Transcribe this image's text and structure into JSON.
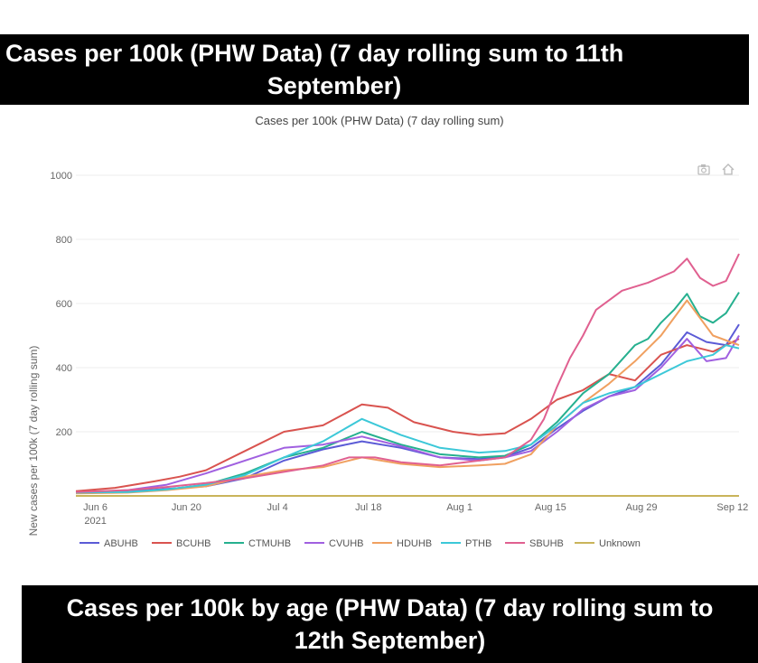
{
  "banners": {
    "top_line1": "Cases per 100k (PHW Data) (7 day rolling sum to 11th",
    "top_line2": "September)",
    "bottom_line1": "Cases per 100k by age (PHW Data) (7 day rolling sum to",
    "bottom_line2": "12th September)"
  },
  "toolbar": {
    "camera_icon": "camera-icon",
    "home_icon": "home-icon"
  },
  "chart_data": {
    "type": "line",
    "title": "Cases per 100k (PHW Data) (7 day rolling sum)",
    "xlabel": "",
    "ylabel": "New cases per 100k (7 day rolling sum)",
    "ylim": [
      0,
      1000
    ],
    "yticks": [
      200,
      400,
      600,
      800,
      1000
    ],
    "xlim": [
      0,
      102
    ],
    "x_note": "x values are days since 3 Jun 2021",
    "xticks": [
      {
        "x": 3,
        "label": "Jun 6",
        "sublabel": "2021"
      },
      {
        "x": 17,
        "label": "Jun 20"
      },
      {
        "x": 31,
        "label": "Jul 4"
      },
      {
        "x": 45,
        "label": "Jul 18"
      },
      {
        "x": 59,
        "label": "Aug 1"
      },
      {
        "x": 73,
        "label": "Aug 15"
      },
      {
        "x": 87,
        "label": "Aug 29"
      },
      {
        "x": 101,
        "label": "Sep 12"
      }
    ],
    "grid": true,
    "legend_position": "bottom",
    "series": [
      {
        "name": "ABUHB",
        "color": "#5b5bd6",
        "x": [
          0,
          8,
          14,
          20,
          26,
          32,
          38,
          44,
          50,
          56,
          62,
          66,
          70,
          74,
          78,
          82,
          86,
          90,
          94,
          97,
          100,
          102
        ],
        "y": [
          10,
          14,
          22,
          30,
          55,
          110,
          145,
          170,
          150,
          120,
          115,
          122,
          150,
          210,
          265,
          310,
          340,
          410,
          510,
          480,
          470,
          535
        ]
      },
      {
        "name": "BCUHB",
        "color": "#d9534f",
        "x": [
          0,
          6,
          12,
          16,
          20,
          26,
          32,
          38,
          44,
          48,
          52,
          58,
          62,
          66,
          70,
          74,
          78,
          82,
          86,
          90,
          94,
          98,
          102
        ],
        "y": [
          15,
          25,
          45,
          60,
          80,
          140,
          200,
          220,
          285,
          275,
          230,
          200,
          190,
          195,
          240,
          300,
          330,
          380,
          360,
          440,
          470,
          450,
          490
        ]
      },
      {
        "name": "CTMUHB",
        "color": "#26b08f",
        "x": [
          0,
          8,
          14,
          20,
          26,
          32,
          38,
          44,
          50,
          56,
          62,
          66,
          70,
          74,
          78,
          82,
          86,
          88,
          90,
          92,
          94,
          96,
          98,
          100,
          102
        ],
        "y": [
          10,
          12,
          20,
          35,
          70,
          120,
          150,
          200,
          160,
          130,
          120,
          125,
          160,
          230,
          320,
          380,
          470,
          490,
          540,
          580,
          630,
          560,
          540,
          570,
          635
        ]
      },
      {
        "name": "CVUHB",
        "color": "#a060e0",
        "x": [
          0,
          8,
          14,
          20,
          26,
          32,
          38,
          44,
          50,
          56,
          62,
          66,
          70,
          74,
          78,
          82,
          86,
          90,
          94,
          97,
          100,
          102
        ],
        "y": [
          10,
          18,
          35,
          70,
          110,
          150,
          160,
          185,
          155,
          120,
          110,
          120,
          140,
          200,
          270,
          310,
          330,
          400,
          490,
          420,
          430,
          500
        ]
      },
      {
        "name": "HDUHB",
        "color": "#f0a060",
        "x": [
          0,
          8,
          14,
          20,
          26,
          32,
          38,
          44,
          50,
          56,
          62,
          66,
          70,
          74,
          78,
          82,
          86,
          90,
          94,
          98,
          102
        ],
        "y": [
          8,
          10,
          18,
          30,
          60,
          80,
          90,
          120,
          100,
          90,
          95,
          100,
          130,
          220,
          290,
          350,
          420,
          500,
          610,
          500,
          470
        ]
      },
      {
        "name": "PTHB",
        "color": "#3cc8d8",
        "x": [
          0,
          8,
          14,
          20,
          26,
          32,
          38,
          44,
          50,
          56,
          62,
          66,
          70,
          74,
          78,
          82,
          86,
          90,
          94,
          98,
          100,
          102
        ],
        "y": [
          10,
          12,
          20,
          35,
          65,
          120,
          170,
          240,
          190,
          150,
          135,
          140,
          160,
          220,
          290,
          320,
          340,
          380,
          420,
          440,
          470,
          460
        ]
      },
      {
        "name": "SBUHB",
        "color": "#e06090",
        "x": [
          0,
          8,
          14,
          20,
          26,
          32,
          38,
          42,
          46,
          50,
          56,
          62,
          66,
          70,
          72,
          74,
          76,
          78,
          80,
          84,
          88,
          92,
          94,
          96,
          98,
          100,
          102
        ],
        "y": [
          12,
          18,
          28,
          40,
          55,
          75,
          95,
          120,
          120,
          105,
          95,
          110,
          120,
          175,
          240,
          340,
          430,
          500,
          580,
          640,
          665,
          700,
          740,
          680,
          655,
          670,
          755
        ]
      },
      {
        "name": "Unknown",
        "color": "#c9b45a",
        "x": [
          0,
          102
        ],
        "y": [
          0,
          0
        ]
      }
    ]
  }
}
